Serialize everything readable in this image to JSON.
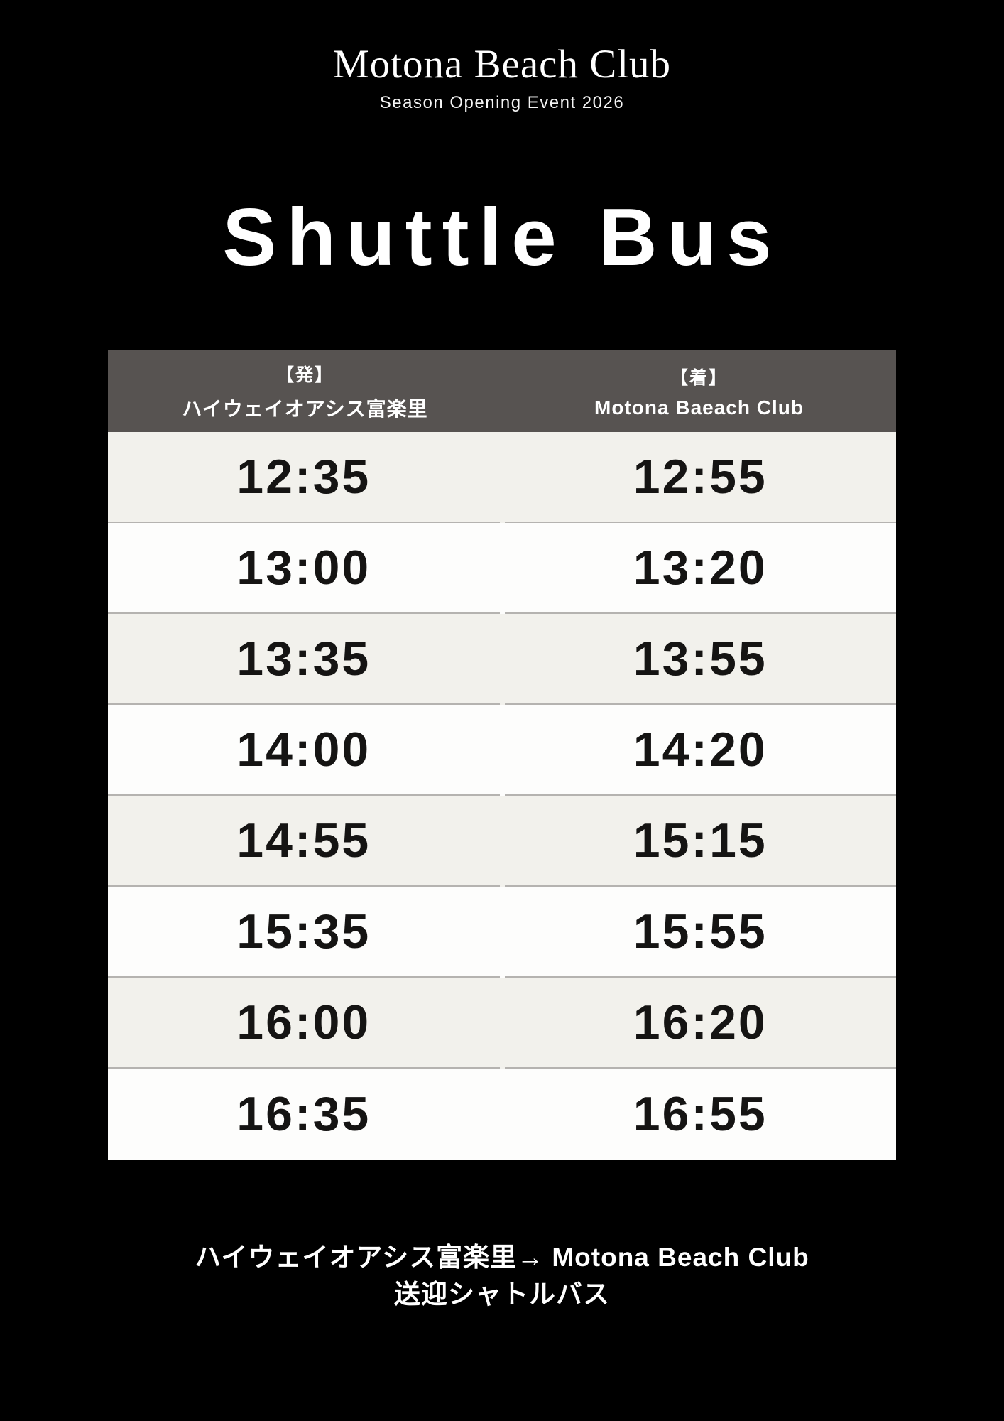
{
  "brand": {
    "title": "Motona Beach Club",
    "subtitle": "Season Opening Event 2026"
  },
  "heading": "Shuttle Bus",
  "timetable": {
    "header": {
      "departure_tag": "【発】",
      "departure_name": "ハイウェイオアシス富楽里",
      "arrival_tag": "【着】",
      "arrival_name": "Motona Baeach Club"
    },
    "rows": [
      {
        "departure": "12:35",
        "arrival": "12:55"
      },
      {
        "departure": "13:00",
        "arrival": "13:20"
      },
      {
        "departure": "13:35",
        "arrival": "13:55"
      },
      {
        "departure": "14:00",
        "arrival": "14:20"
      },
      {
        "departure": "14:55",
        "arrival": "15:15"
      },
      {
        "departure": "15:35",
        "arrival": "15:55"
      },
      {
        "departure": "16:00",
        "arrival": "16:20"
      },
      {
        "departure": "16:35",
        "arrival": "16:55"
      }
    ]
  },
  "footer": {
    "line1": "ハイウェイオアシス富楽里→ Motona Beach Club",
    "line2": "送迎シャトルバス"
  },
  "colors": {
    "background": "#000000",
    "table_header_bg": "#575351",
    "row_alt_bg": "#f2f1ec",
    "row_bg": "#fdfdfc",
    "row_divider": "#b5b3b0",
    "time_text": "#151413",
    "text": "#ffffff"
  }
}
